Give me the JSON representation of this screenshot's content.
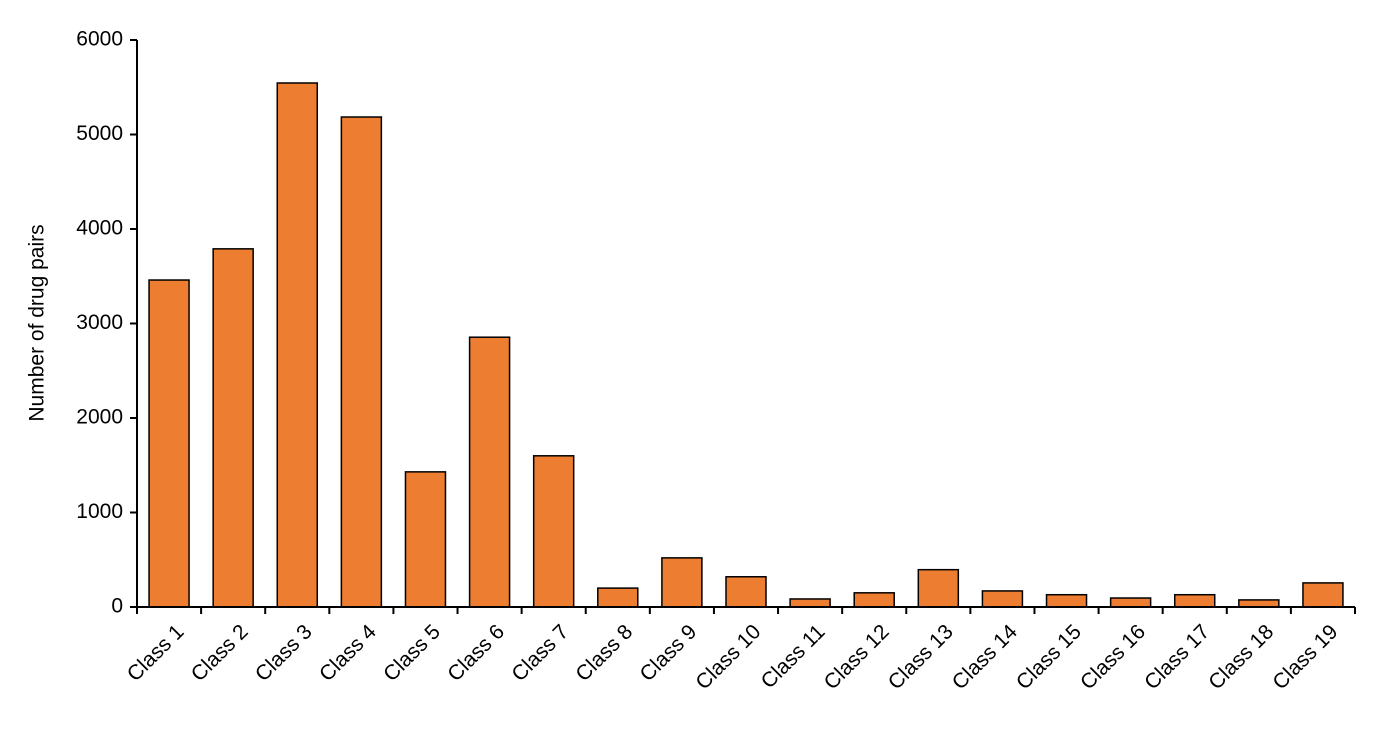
{
  "chart_data": {
    "type": "bar",
    "y_label": "Number of drug pairs",
    "categories": [
      "Class 1",
      "Class 2",
      "Class 3",
      "Class 4",
      "Class 5",
      "Class 6",
      "Class 7",
      "Class 8",
      "Class 9",
      "Class 10",
      "Class 11",
      "Class 12",
      "Class 13",
      "Class 14",
      "Class 15",
      "Class 16",
      "Class 17",
      "Class 18",
      "Class 19"
    ],
    "values": [
      3460,
      3790,
      5545,
      5185,
      1430,
      2855,
      1600,
      200,
      520,
      320,
      85,
      150,
      395,
      170,
      130,
      95,
      130,
      75,
      255
    ],
    "color": "#ed7d31",
    "ylim": [
      0,
      6000
    ],
    "yticks": [
      0,
      1000,
      2000,
      3000,
      4000,
      5000,
      6000
    ],
    "grid": false
  }
}
